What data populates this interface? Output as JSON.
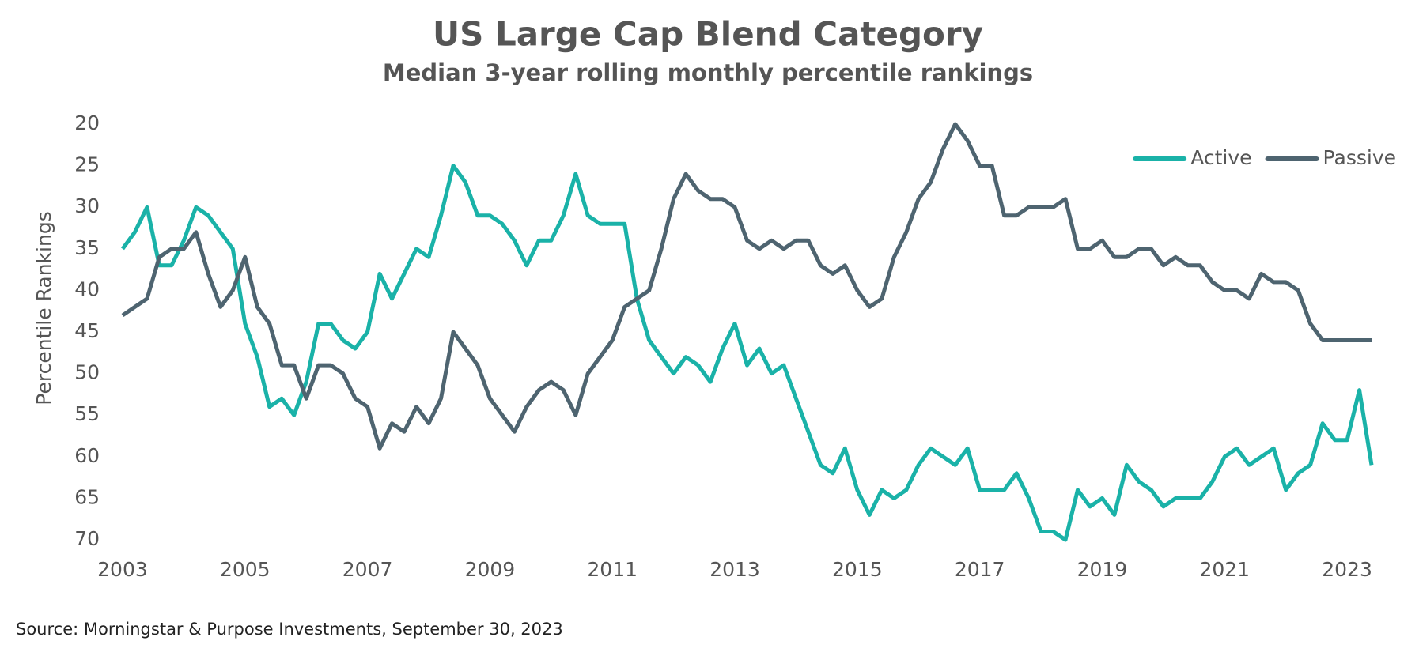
{
  "chart_data": {
    "type": "line",
    "title": "US Large Cap Blend Category",
    "subtitle": "Median 3-year rolling monthly percentile rankings",
    "y_label": "Percentile Rankings",
    "source": "Source: Morningstar & Purpose Investments, September 30, 2023",
    "x": [
      2003.0,
      2003.2,
      2003.4,
      2003.6,
      2003.8,
      2004.0,
      2004.2,
      2004.4,
      2004.6,
      2004.8,
      2005.0,
      2005.2,
      2005.4,
      2005.6,
      2005.8,
      2006.0,
      2006.2,
      2006.4,
      2006.6,
      2006.8,
      2007.0,
      2007.2,
      2007.4,
      2007.6,
      2007.8,
      2008.0,
      2008.2,
      2008.4,
      2008.6,
      2008.8,
      2009.0,
      2009.2,
      2009.4,
      2009.6,
      2009.8,
      2010.0,
      2010.2,
      2010.4,
      2010.6,
      2010.8,
      2011.0,
      2011.2,
      2011.4,
      2011.6,
      2011.8,
      2012.0,
      2012.2,
      2012.4,
      2012.6,
      2012.8,
      2013.0,
      2013.2,
      2013.4,
      2013.6,
      2013.8,
      2014.0,
      2014.2,
      2014.4,
      2014.6,
      2014.8,
      2015.0,
      2015.2,
      2015.4,
      2015.6,
      2015.8,
      2016.0,
      2016.2,
      2016.4,
      2016.6,
      2016.8,
      2017.0,
      2017.2,
      2017.4,
      2017.6,
      2017.8,
      2018.0,
      2018.2,
      2018.4,
      2018.6,
      2018.8,
      2019.0,
      2019.2,
      2019.4,
      2019.6,
      2019.8,
      2020.0,
      2020.2,
      2020.4,
      2020.6,
      2020.8,
      2021.0,
      2021.2,
      2021.4,
      2021.6,
      2021.8,
      2022.0,
      2022.2,
      2022.4,
      2022.6,
      2022.8,
      2023.0,
      2023.2,
      2023.4
    ],
    "series": [
      {
        "name": "Active",
        "color": "#1ab2a8",
        "values": [
          35,
          33,
          30,
          37,
          37,
          34,
          30,
          31,
          33,
          35,
          44,
          48,
          54,
          53,
          55,
          51,
          44,
          44,
          46,
          47,
          45,
          38,
          41,
          38,
          35,
          36,
          31,
          25,
          27,
          31,
          31,
          32,
          34,
          37,
          34,
          34,
          31,
          26,
          31,
          32,
          32,
          32,
          41,
          46,
          48,
          50,
          48,
          49,
          51,
          47,
          44,
          49,
          47,
          50,
          49,
          53,
          57,
          61,
          62,
          59,
          64,
          67,
          64,
          65,
          64,
          61,
          59,
          60,
          61,
          59,
          64,
          64,
          64,
          62,
          65,
          69,
          69,
          70,
          64,
          66,
          65,
          67,
          61,
          63,
          64,
          66,
          65,
          65,
          65,
          63,
          60,
          59,
          61,
          60,
          59,
          64,
          62,
          61,
          56,
          58,
          58,
          52,
          61
        ]
      },
      {
        "name": "Passive",
        "color": "#4e6470",
        "values": [
          43,
          42,
          41,
          36,
          35,
          35,
          33,
          38,
          42,
          40,
          36,
          42,
          44,
          49,
          49,
          53,
          49,
          49,
          50,
          53,
          54,
          59,
          56,
          57,
          54,
          56,
          53,
          45,
          47,
          49,
          53,
          55,
          57,
          54,
          52,
          51,
          52,
          55,
          50,
          48,
          46,
          42,
          41,
          40,
          35,
          29,
          26,
          28,
          29,
          29,
          30,
          34,
          35,
          34,
          35,
          34,
          34,
          37,
          38,
          37,
          40,
          42,
          41,
          36,
          33,
          29,
          27,
          23,
          20,
          22,
          25,
          25,
          31,
          31,
          30,
          30,
          30,
          29,
          35,
          35,
          34,
          36,
          36,
          35,
          35,
          37,
          36,
          37,
          37,
          39,
          40,
          40,
          41,
          38,
          39,
          39,
          40,
          44,
          46,
          46,
          46,
          46,
          46
        ]
      }
    ],
    "xlim": [
      2002.6,
      2023.8
    ],
    "xticks": [
      2003,
      2005,
      2007,
      2009,
      2011,
      2013,
      2015,
      2017,
      2019,
      2021,
      2023
    ],
    "ylim": [
      20,
      70
    ],
    "yticks": [
      20,
      25,
      30,
      35,
      40,
      45,
      50,
      55,
      60,
      65,
      70
    ],
    "y_inverted": true,
    "grid": false,
    "legend": "upper right"
  }
}
